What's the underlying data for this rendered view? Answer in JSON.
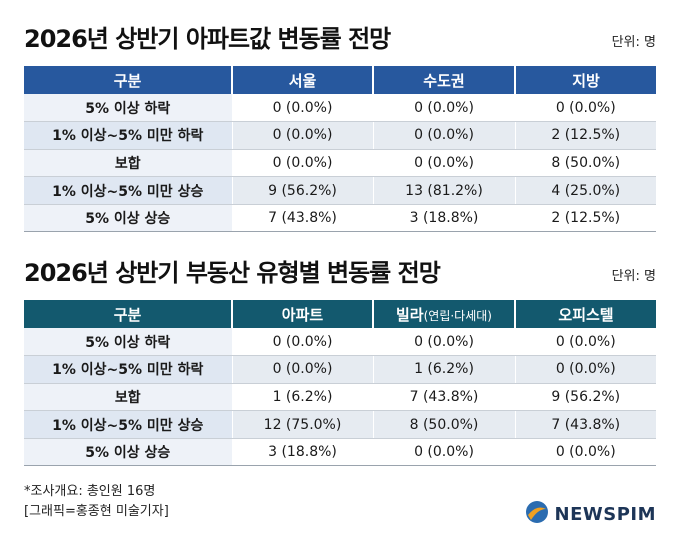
{
  "table1": {
    "title": "2026년 상반기 아파트값 변동률 전망",
    "unit": "단위: 명",
    "headers": [
      "구분",
      "서울",
      "수도권",
      "지방"
    ],
    "rows": [
      {
        "label": "5% 이상 하락",
        "values": [
          "0 (0.0%)",
          "0 (0.0%)",
          "0 (0.0%)"
        ]
      },
      {
        "label": "1% 이상~5% 미만 하락",
        "values": [
          "0 (0.0%)",
          "0 (0.0%)",
          "2 (12.5%)"
        ]
      },
      {
        "label": "보합",
        "values": [
          "0 (0.0%)",
          "0 (0.0%)",
          "8 (50.0%)"
        ]
      },
      {
        "label": "1% 이상~5% 미만 상승",
        "values": [
          "9 (56.2%)",
          "13 (81.2%)",
          "4 (25.0%)"
        ]
      },
      {
        "label": "5% 이상 상승",
        "values": [
          "7 (43.8%)",
          "3 (18.8%)",
          "2 (12.5%)"
        ]
      }
    ]
  },
  "table2": {
    "title": "2026년 상반기 부동산 유형별 변동률 전망",
    "unit": "단위: 명",
    "headers": [
      "구분",
      "아파트",
      "빌라",
      "오피스텔"
    ],
    "header_sub": "(연립·다세대)",
    "rows": [
      {
        "label": "5% 이상 하락",
        "values": [
          "0 (0.0%)",
          "0 (0.0%)",
          "0 (0.0%)"
        ]
      },
      {
        "label": "1% 이상~5% 미만 하락",
        "values": [
          "0 (0.0%)",
          "1 (6.2%)",
          "0 (0.0%)"
        ]
      },
      {
        "label": "보합",
        "values": [
          "1 (6.2%)",
          "7 (43.8%)",
          "9 (56.2%)"
        ]
      },
      {
        "label": "1% 이상~5% 미만 상승",
        "values": [
          "12 (75.0%)",
          "8 (50.0%)",
          "7 (43.8%)"
        ]
      },
      {
        "label": "5% 이상 상승",
        "values": [
          "3 (18.8%)",
          "0 (0.0%)",
          "0 (0.0%)"
        ]
      }
    ]
  },
  "footnote": {
    "line1": "*조사개요: 총인원 16명",
    "line2": "[그래픽=홍종현 미술기자]"
  },
  "logo": {
    "text": "NEWSPIM",
    "colors": {
      "blue": "#2b6cb0",
      "orange": "#f0a020"
    }
  },
  "colors": {
    "table1_header": "#27589e",
    "table2_header": "#13596e",
    "row_shade": "#e6ebf1"
  }
}
